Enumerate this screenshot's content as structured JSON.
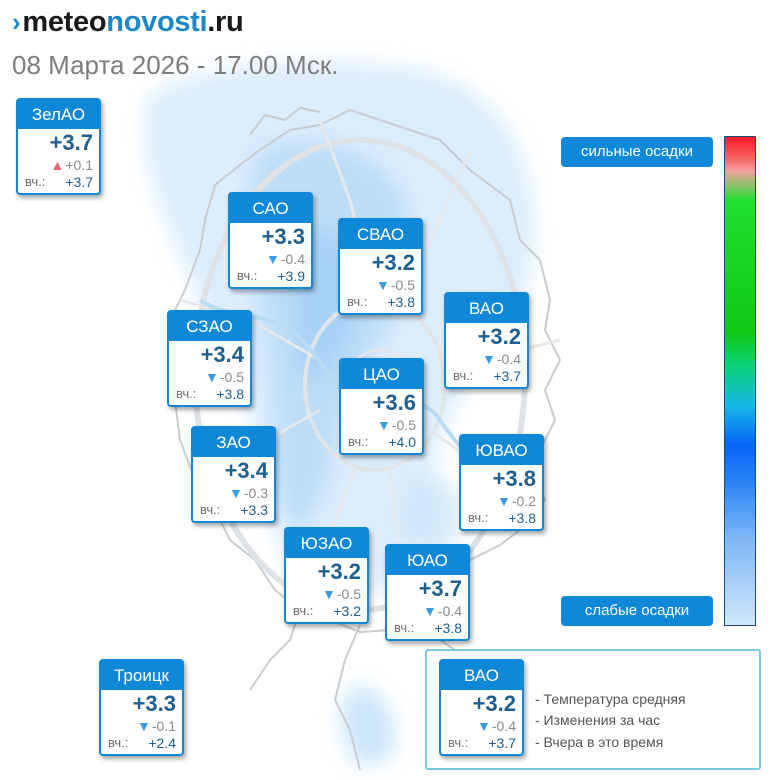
{
  "header": {
    "logo_mark": "›",
    "logo_part1": "meteo",
    "logo_part2": "novosti",
    "logo_part3": ".ru",
    "subtitle": "08 Марта 2026 - 17.00 Мск."
  },
  "scale": {
    "high_label": "сильные осадки",
    "low_label": "слабые осадки"
  },
  "districts": [
    {
      "id": "zelao",
      "name": "ЗелАО",
      "temp": "+3.7",
      "change": "+0.1",
      "trend": "up",
      "yesterday_label": "вч.:",
      "yesterday": "+3.7"
    },
    {
      "id": "sao",
      "name": "САО",
      "temp": "+3.3",
      "change": "-0.4",
      "trend": "down",
      "yesterday_label": "вч.:",
      "yesterday": "+3.9"
    },
    {
      "id": "svao",
      "name": "СВАО",
      "temp": "+3.2",
      "change": "-0.5",
      "trend": "down",
      "yesterday_label": "вч.:",
      "yesterday": "+3.8"
    },
    {
      "id": "vao",
      "name": "ВАО",
      "temp": "+3.2",
      "change": "-0.4",
      "trend": "down",
      "yesterday_label": "вч.:",
      "yesterday": "+3.7"
    },
    {
      "id": "szao",
      "name": "СЗАО",
      "temp": "+3.4",
      "change": "-0.5",
      "trend": "down",
      "yesterday_label": "вч.:",
      "yesterday": "+3.8"
    },
    {
      "id": "cao",
      "name": "ЦАО",
      "temp": "+3.6",
      "change": "-0.5",
      "trend": "down",
      "yesterday_label": "вч.:",
      "yesterday": "+4.0"
    },
    {
      "id": "zao",
      "name": "ЗАО",
      "temp": "+3.4",
      "change": "-0.3",
      "trend": "down",
      "yesterday_label": "вч.:",
      "yesterday": "+3.3"
    },
    {
      "id": "yuvao",
      "name": "ЮВАО",
      "temp": "+3.8",
      "change": "-0.2",
      "trend": "down",
      "yesterday_label": "вч.:",
      "yesterday": "+3.8"
    },
    {
      "id": "yuzao",
      "name": "ЮЗАО",
      "temp": "+3.2",
      "change": "-0.5",
      "trend": "down",
      "yesterday_label": "вч.:",
      "yesterday": "+3.2"
    },
    {
      "id": "yuao",
      "name": "ЮАО",
      "temp": "+3.7",
      "change": "-0.4",
      "trend": "down",
      "yesterday_label": "вч.:",
      "yesterday": "+3.8"
    },
    {
      "id": "troitsk",
      "name": "Троицк",
      "temp": "+3.3",
      "change": "-0.1",
      "trend": "down",
      "yesterday_label": "вч.:",
      "yesterday": "+2.4"
    }
  ],
  "legend": {
    "example": {
      "name": "ВАО",
      "temp": "+3.2",
      "change": "-0.4",
      "trend": "down",
      "yesterday_label": "вч.:",
      "yesterday": "+3.7"
    },
    "line1": "- Температура средняя",
    "line2": "- Изменения за час",
    "line3": "- Вчера в это время"
  },
  "colors": {
    "brand": "#1d88c9",
    "card_header": "#1088d8",
    "temp_text": "#1f5f8f",
    "trend_down": "#3b9be0",
    "trend_up": "#e36370"
  }
}
